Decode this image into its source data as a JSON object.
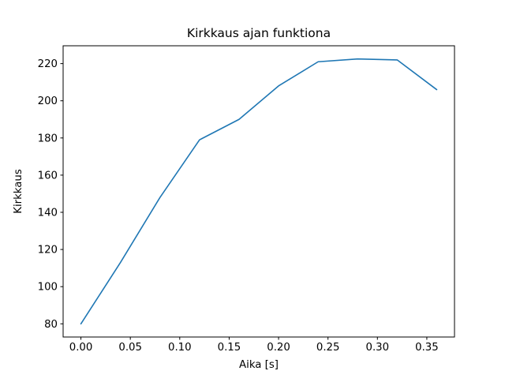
{
  "chart_data": {
    "type": "line",
    "title": "Kirkkaus ajan funktiona",
    "xlabel": "Aika [s]",
    "ylabel": "Kirkkaus",
    "x": [
      0.0,
      0.04,
      0.08,
      0.12,
      0.16,
      0.2,
      0.24,
      0.28,
      0.32,
      0.36
    ],
    "y": [
      80,
      113,
      148,
      179,
      190,
      208,
      221,
      222.5,
      222,
      206
    ],
    "xlim": [
      -0.018,
      0.378
    ],
    "ylim": [
      72.9,
      229.6
    ],
    "xtick_values": [
      0.0,
      0.05,
      0.1,
      0.15,
      0.2,
      0.25,
      0.3,
      0.35
    ],
    "xtick_labels": [
      "0.00",
      "0.05",
      "0.10",
      "0.15",
      "0.20",
      "0.25",
      "0.30",
      "0.35"
    ],
    "ytick_values": [
      80,
      100,
      120,
      140,
      160,
      180,
      200,
      220
    ],
    "ytick_labels": [
      "80",
      "100",
      "120",
      "140",
      "160",
      "180",
      "200",
      "220"
    ],
    "line_color": "#1f77b4",
    "spine_color": "#000000",
    "grid": false,
    "legend": null
  }
}
